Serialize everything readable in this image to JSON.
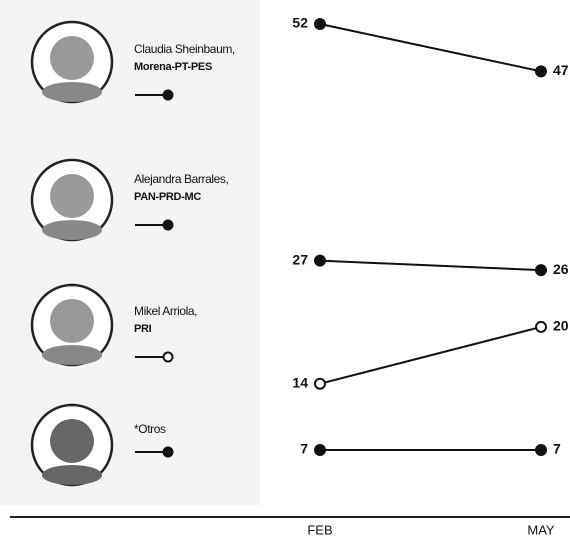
{
  "chart_data": {
    "type": "line",
    "categories": [
      "FEB",
      "MAY"
    ],
    "series": [
      {
        "name": "Claudia Sheinbaum,",
        "party": "Morena-PT-PES",
        "color": "#111111",
        "marker": "filled",
        "values": [
          52,
          47
        ]
      },
      {
        "name": "Alejandra Barrales,",
        "party": "PAN-PRD-MC",
        "color": "#111111",
        "marker": "filled",
        "values": [
          27,
          26
        ]
      },
      {
        "name": "Mikel Arriola,",
        "party": "PRI",
        "color": "#111111",
        "marker": "open",
        "values": [
          14,
          20
        ]
      },
      {
        "name": "*Otros",
        "color": "#111111",
        "marker": "filled",
        "values": [
          7,
          7
        ]
      }
    ]
  }
}
